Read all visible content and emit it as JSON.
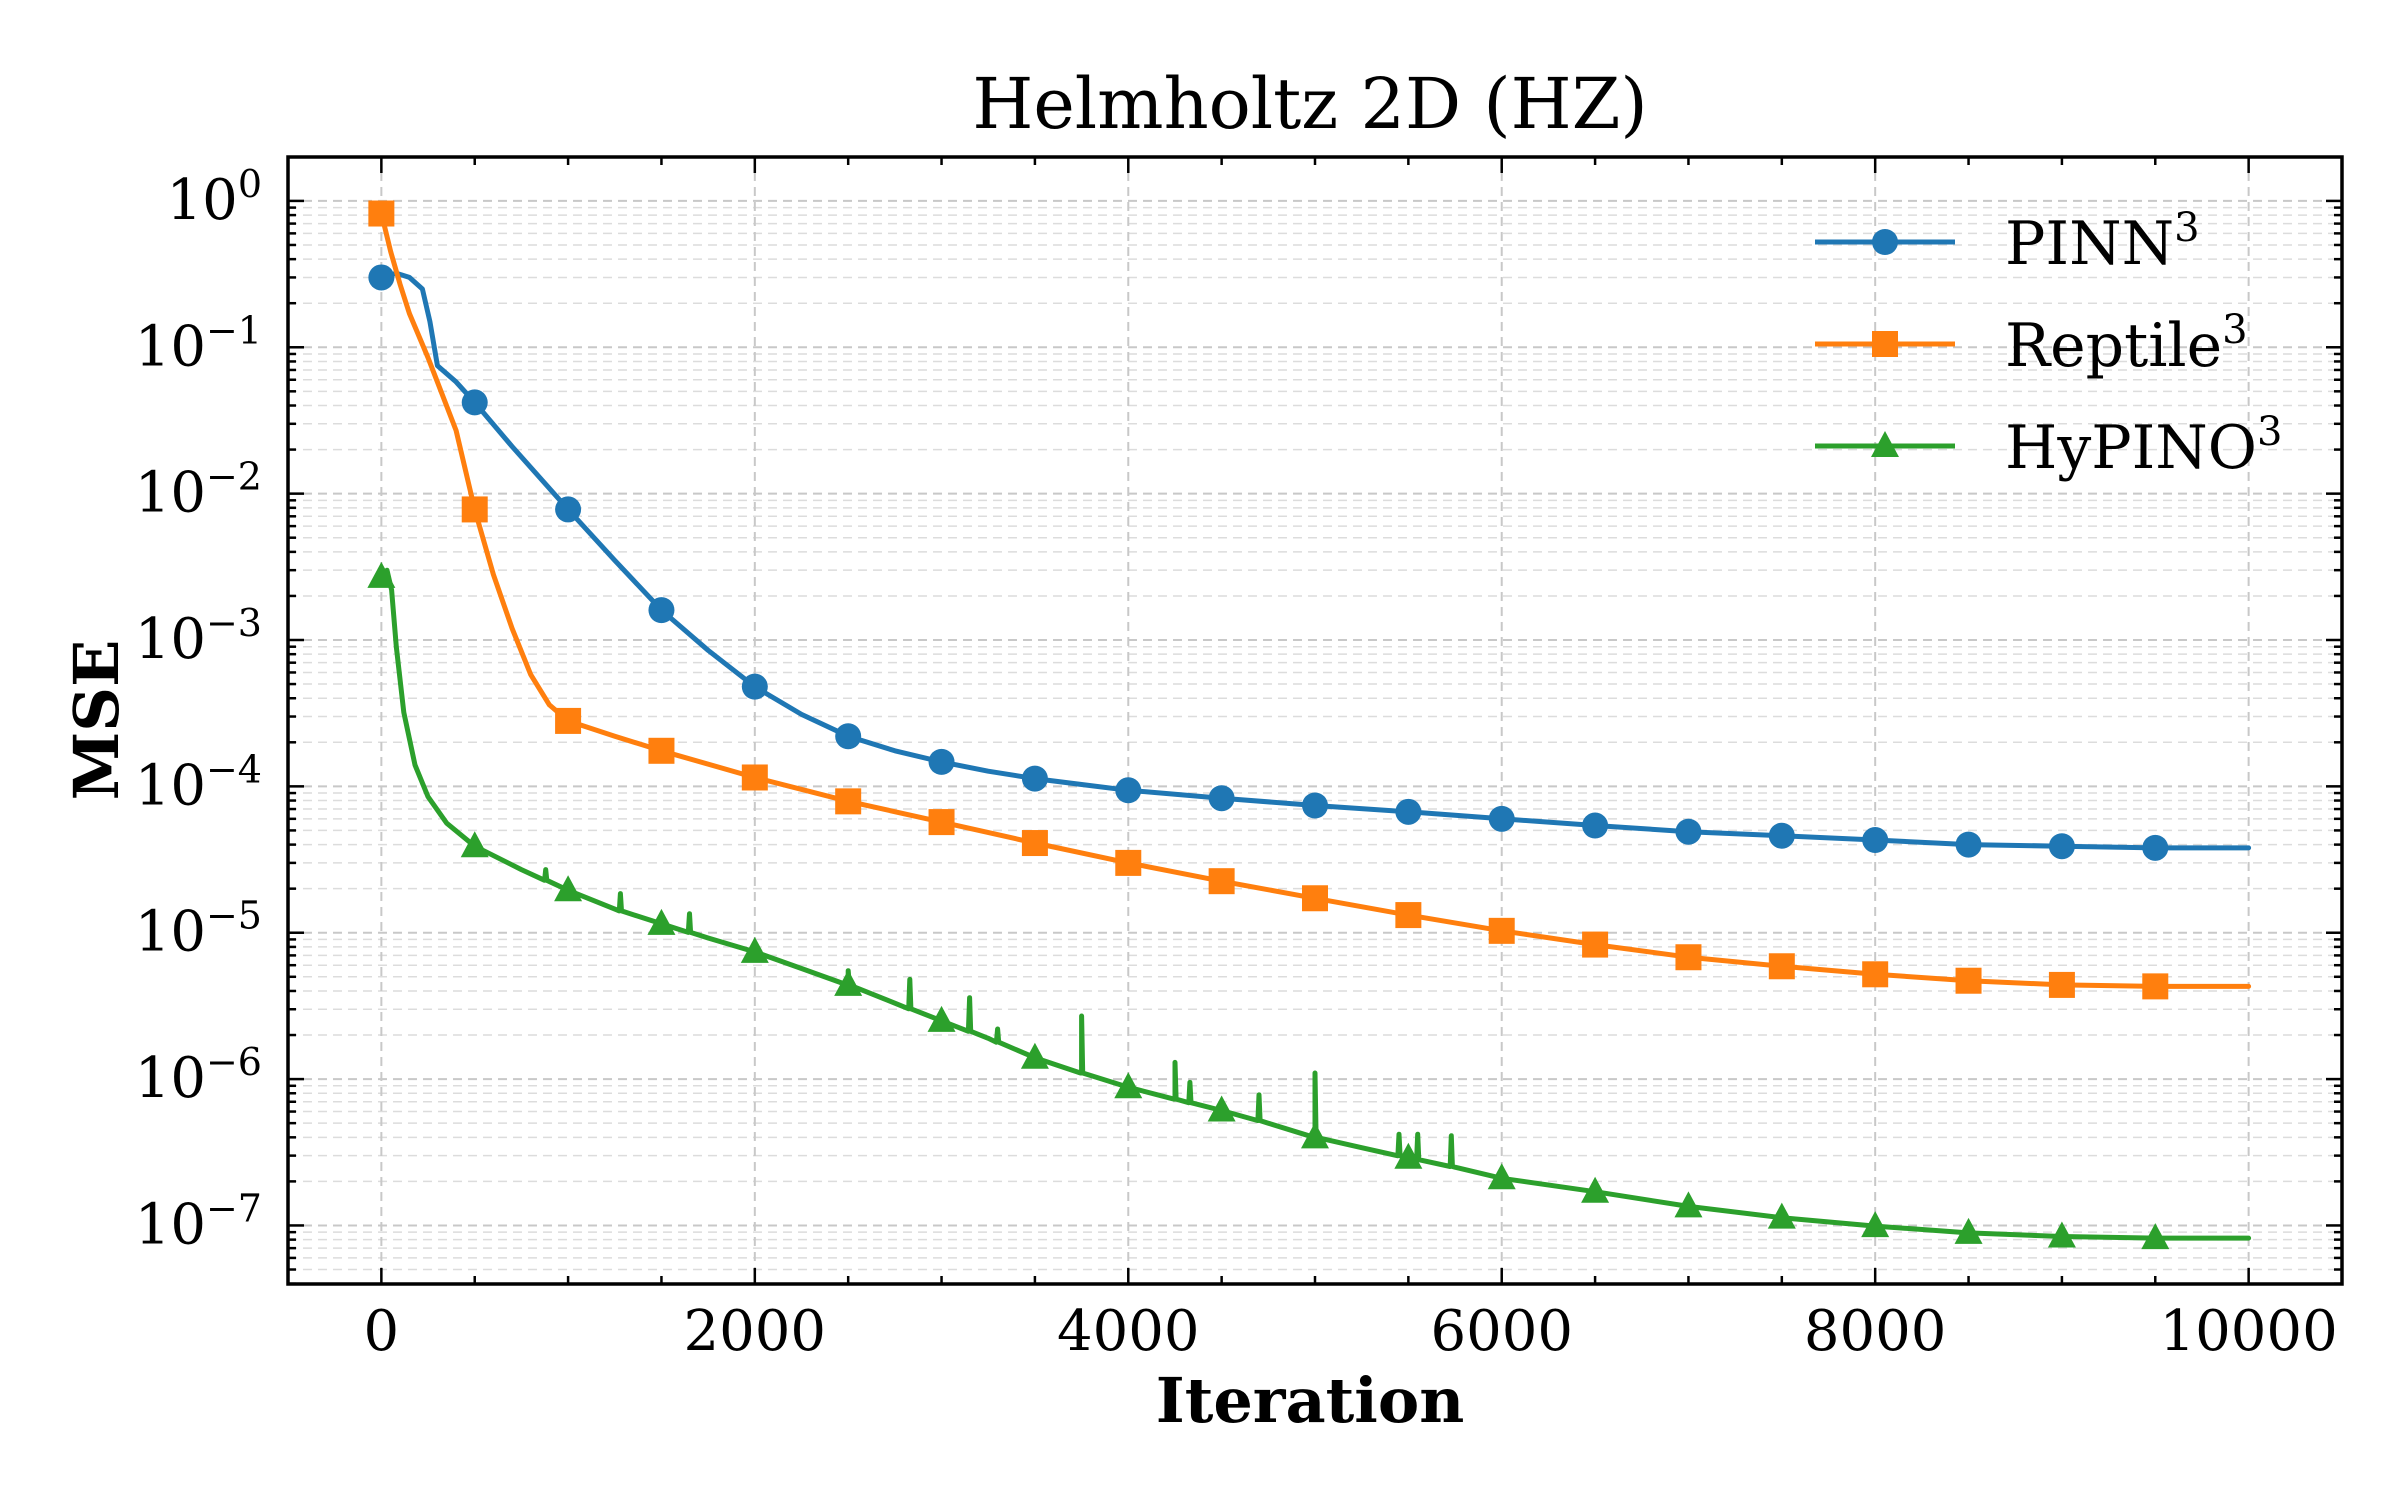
{
  "chart_data": {
    "type": "line",
    "title": "Helmholtz 2D (HZ)",
    "xlabel": "Iteration",
    "ylabel": "MSE",
    "xscale": "linear",
    "yscale": "log",
    "xlim": [
      -500,
      10500
    ],
    "ylim_log10": [
      -7.4,
      0.3
    ],
    "grid": true,
    "legend_location": "top-right",
    "x_ticks": [
      {
        "value": 0,
        "label": "0"
      },
      {
        "value": 2000,
        "label": "2000"
      },
      {
        "value": 4000,
        "label": "4000"
      },
      {
        "value": 6000,
        "label": "6000"
      },
      {
        "value": 8000,
        "label": "8000"
      },
      {
        "value": 10000,
        "label": "10000"
      }
    ],
    "y_ticks": [
      {
        "exp": 0,
        "base": "10",
        "sup": "0"
      },
      {
        "exp": -1,
        "base": "10",
        "sup": "−1"
      },
      {
        "exp": -2,
        "base": "10",
        "sup": "−2"
      },
      {
        "exp": -3,
        "base": "10",
        "sup": "−3"
      },
      {
        "exp": -4,
        "base": "10",
        "sup": "−4"
      },
      {
        "exp": -5,
        "base": "10",
        "sup": "−5"
      },
      {
        "exp": -6,
        "base": "10",
        "sup": "−6"
      },
      {
        "exp": -7,
        "base": "10",
        "sup": "−7"
      }
    ],
    "series": [
      {
        "name": "PINN",
        "legend_sup": "3",
        "color": "#1f77b4",
        "marker": "circle",
        "curve": [
          [
            0,
            0.3
          ],
          [
            80,
            0.32
          ],
          [
            150,
            0.3
          ],
          [
            220,
            0.25
          ],
          [
            260,
            0.15
          ],
          [
            300,
            0.075
          ],
          [
            400,
            0.058
          ],
          [
            500,
            0.042
          ],
          [
            700,
            0.021
          ],
          [
            1000,
            0.0078
          ],
          [
            1250,
            0.0035
          ],
          [
            1500,
            0.0016
          ],
          [
            1750,
            0.00085
          ],
          [
            2000,
            0.00048
          ],
          [
            2250,
            0.00031
          ],
          [
            2500,
            0.00022
          ],
          [
            2750,
            0.000175
          ],
          [
            3000,
            0.000147
          ],
          [
            3250,
            0.000127
          ],
          [
            3500,
            0.000113
          ],
          [
            3750,
            0.000103
          ],
          [
            4000,
            9.4e-05
          ],
          [
            4500,
            8.3e-05
          ],
          [
            5000,
            7.4e-05
          ],
          [
            5500,
            6.7e-05
          ],
          [
            6000,
            6e-05
          ],
          [
            6500,
            5.4e-05
          ],
          [
            7000,
            4.9e-05
          ],
          [
            7500,
            4.6e-05
          ],
          [
            8000,
            4.3e-05
          ],
          [
            8500,
            4e-05
          ],
          [
            9000,
            3.9e-05
          ],
          [
            9500,
            3.8e-05
          ],
          [
            10000,
            3.8e-05
          ]
        ],
        "markers": [
          [
            0,
            0.3
          ],
          [
            500,
            0.042
          ],
          [
            1000,
            0.0078
          ],
          [
            1500,
            0.0016
          ],
          [
            2000,
            0.00048
          ],
          [
            2500,
            0.00022
          ],
          [
            3000,
            0.000147
          ],
          [
            3500,
            0.000113
          ],
          [
            4000,
            9.4e-05
          ],
          [
            4500,
            8.3e-05
          ],
          [
            5000,
            7.4e-05
          ],
          [
            5500,
            6.7e-05
          ],
          [
            6000,
            6e-05
          ],
          [
            6500,
            5.4e-05
          ],
          [
            7000,
            4.9e-05
          ],
          [
            7500,
            4.6e-05
          ],
          [
            8000,
            4.3e-05
          ],
          [
            8500,
            4e-05
          ],
          [
            9000,
            3.9e-05
          ],
          [
            9500,
            3.8e-05
          ]
        ]
      },
      {
        "name": "Reptile",
        "legend_sup": "3",
        "color": "#ff7f0e",
        "marker": "square",
        "curve": [
          [
            0,
            0.82
          ],
          [
            50,
            0.45
          ],
          [
            100,
            0.27
          ],
          [
            150,
            0.17
          ],
          [
            250,
            0.085
          ],
          [
            400,
            0.027
          ],
          [
            500,
            0.0078
          ],
          [
            600,
            0.0028
          ],
          [
            700,
            0.0012
          ],
          [
            800,
            0.00058
          ],
          [
            900,
            0.00036
          ],
          [
            1000,
            0.00028
          ],
          [
            1250,
            0.00022
          ],
          [
            1500,
            0.000175
          ],
          [
            2000,
            0.000115
          ],
          [
            2500,
            7.9e-05
          ],
          [
            3000,
            5.7e-05
          ],
          [
            3500,
            4.1e-05
          ],
          [
            4000,
            3e-05
          ],
          [
            4500,
            2.25e-05
          ],
          [
            5000,
            1.72e-05
          ],
          [
            5500,
            1.32e-05
          ],
          [
            6000,
            1.03e-05
          ],
          [
            6500,
            8.3e-06
          ],
          [
            7000,
            6.8e-06
          ],
          [
            7500,
            5.9e-06
          ],
          [
            8000,
            5.2e-06
          ],
          [
            8500,
            4.7e-06
          ],
          [
            9000,
            4.4e-06
          ],
          [
            9500,
            4.3e-06
          ],
          [
            10000,
            4.3e-06
          ]
        ],
        "markers": [
          [
            0,
            0.82
          ],
          [
            500,
            0.0078
          ],
          [
            1000,
            0.00028
          ],
          [
            1500,
            0.000175
          ],
          [
            2000,
            0.000115
          ],
          [
            2500,
            7.9e-05
          ],
          [
            3000,
            5.7e-05
          ],
          [
            3500,
            4.1e-05
          ],
          [
            4000,
            3e-05
          ],
          [
            4500,
            2.25e-05
          ],
          [
            5000,
            1.72e-05
          ],
          [
            5500,
            1.32e-05
          ],
          [
            6000,
            1.03e-05
          ],
          [
            6500,
            8.3e-06
          ],
          [
            7000,
            6.8e-06
          ],
          [
            7500,
            5.9e-06
          ],
          [
            8000,
            5.2e-06
          ],
          [
            8500,
            4.7e-06
          ],
          [
            9000,
            4.4e-06
          ],
          [
            9500,
            4.3e-06
          ]
        ]
      },
      {
        "name": "HyPINO",
        "legend_sup": "3",
        "color": "#2ca02c",
        "marker": "triangle",
        "curve": [
          [
            0,
            0.0027
          ],
          [
            30,
            0.003
          ],
          [
            55,
            0.0022
          ],
          [
            80,
            0.0009
          ],
          [
            120,
            0.00032
          ],
          [
            180,
            0.00014
          ],
          [
            250,
            8.5e-05
          ],
          [
            350,
            5.6e-05
          ],
          [
            500,
            3.9e-05
          ],
          [
            750,
            2.7e-05
          ],
          [
            1000,
            1.95e-05
          ],
          [
            1250,
            1.45e-05
          ],
          [
            1500,
            1.15e-05
          ],
          [
            1750,
            9.2e-06
          ],
          [
            2000,
            7.4e-06
          ],
          [
            2250,
            5.7e-06
          ],
          [
            2500,
            4.4e-06
          ],
          [
            2750,
            3.3e-06
          ],
          [
            3000,
            2.5e-06
          ],
          [
            3250,
            1.9e-06
          ],
          [
            3500,
            1.4e-06
          ],
          [
            3750,
            1.1e-06
          ],
          [
            4000,
            8.8e-07
          ],
          [
            4250,
            7.3e-07
          ],
          [
            4500,
            6.1e-07
          ],
          [
            4750,
            5e-07
          ],
          [
            5000,
            4e-07
          ],
          [
            5250,
            3.4e-07
          ],
          [
            5500,
            2.9e-07
          ],
          [
            5750,
            2.5e-07
          ],
          [
            6000,
            2.1e-07
          ],
          [
            6500,
            1.7e-07
          ],
          [
            7000,
            1.35e-07
          ],
          [
            7500,
            1.13e-07
          ],
          [
            8000,
            9.9e-08
          ],
          [
            8500,
            8.9e-08
          ],
          [
            9000,
            8.4e-08
          ],
          [
            9500,
            8.2e-08
          ],
          [
            10000,
            8.2e-08
          ]
        ],
        "spikes": [
          [
            880,
            2.7e-05
          ],
          [
            1280,
            1.85e-05
          ],
          [
            1650,
            1.35e-05
          ],
          [
            2500,
            5.5e-06
          ],
          [
            2830,
            4.8e-06
          ],
          [
            3150,
            3.6e-06
          ],
          [
            3300,
            2.2e-06
          ],
          [
            3750,
            2.7e-06
          ],
          [
            4250,
            1.3e-06
          ],
          [
            4330,
            9.5e-07
          ],
          [
            4700,
            7.8e-07
          ],
          [
            5000,
            1.1e-06
          ],
          [
            5450,
            4.2e-07
          ],
          [
            5550,
            4.2e-07
          ],
          [
            5730,
            4.1e-07
          ]
        ],
        "markers": [
          [
            0,
            0.0027
          ],
          [
            500,
            3.9e-05
          ],
          [
            1000,
            1.95e-05
          ],
          [
            1500,
            1.15e-05
          ],
          [
            2000,
            7.4e-06
          ],
          [
            2500,
            4.4e-06
          ],
          [
            3000,
            2.5e-06
          ],
          [
            3500,
            1.4e-06
          ],
          [
            4000,
            8.8e-07
          ],
          [
            4500,
            6.1e-07
          ],
          [
            5000,
            4e-07
          ],
          [
            5500,
            2.9e-07
          ],
          [
            6000,
            2.1e-07
          ],
          [
            6500,
            1.7e-07
          ],
          [
            7000,
            1.35e-07
          ],
          [
            7500,
            1.13e-07
          ],
          [
            8000,
            9.9e-08
          ],
          [
            8500,
            8.9e-08
          ],
          [
            9000,
            8.4e-08
          ],
          [
            9500,
            8.2e-08
          ]
        ]
      }
    ]
  }
}
